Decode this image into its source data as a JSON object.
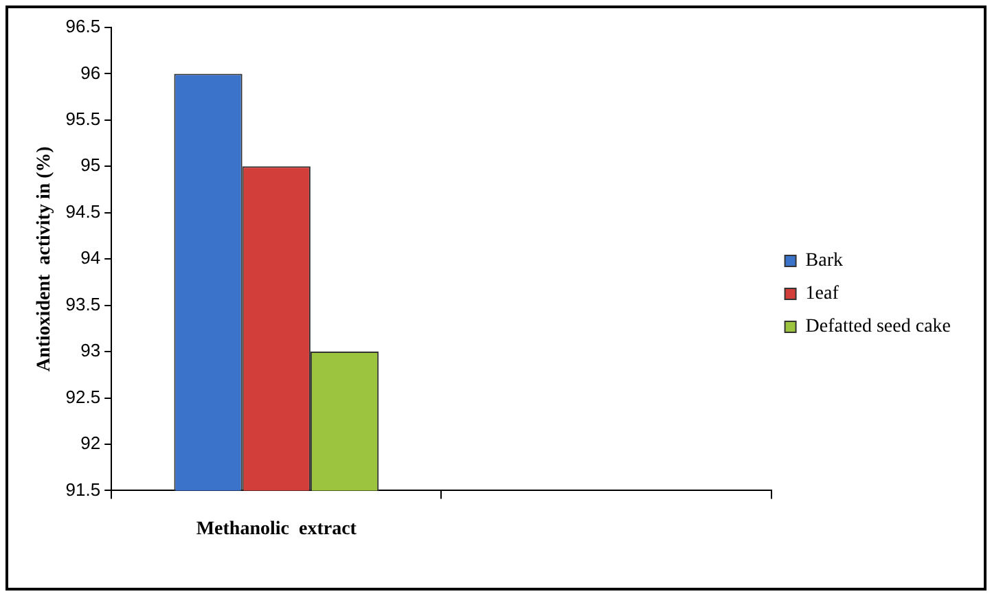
{
  "chart_data": {
    "type": "bar",
    "categories": [
      "Methanolic  extract",
      null
    ],
    "ylabel": "Antioxident  activity in (%)",
    "series": [
      {
        "name": "Bark",
        "color": "#3a73c9",
        "values": [
          96,
          null
        ]
      },
      {
        "name": "1eaf",
        "color": "#d23e3a",
        "values": [
          95,
          null
        ]
      },
      {
        "name": "Defatted seed cake",
        "color": "#9cc43e",
        "values": [
          93,
          null
        ]
      }
    ],
    "ylim": [
      91.5,
      96.5
    ],
    "yticks": [
      {
        "value": 91.5,
        "label": "91.5"
      },
      {
        "value": 92,
        "label": "92"
      },
      {
        "value": 92.5,
        "label": "92.5"
      },
      {
        "value": 93,
        "label": "93"
      },
      {
        "value": 93.5,
        "label": "93.5"
      },
      {
        "value": 94,
        "label": "94"
      },
      {
        "value": 94.5,
        "label": "94.5"
      },
      {
        "value": 95,
        "label": "95"
      },
      {
        "value": 95.5,
        "label": "95.5"
      },
      {
        "value": 96,
        "label": "96"
      },
      {
        "value": 96.5,
        "label": "96.5"
      }
    ],
    "grid": false,
    "legend": "right"
  }
}
